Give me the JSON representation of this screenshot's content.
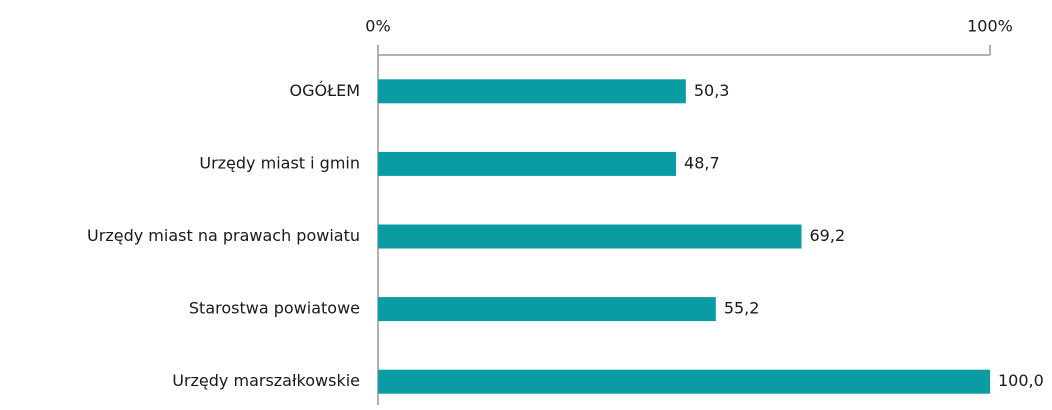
{
  "chart_data": {
    "type": "bar",
    "orientation": "horizontal",
    "categories": [
      "OGÓŁEM",
      "Urzędy miast i gmin",
      "Urzędy miast na prawach powiatu",
      "Starostwa powiatowe",
      "Urzędy marszałkowskie"
    ],
    "values": [
      50.3,
      48.7,
      69.2,
      55.2,
      100.0
    ],
    "value_labels": [
      "50,3",
      "48,7",
      "69,2",
      "55,2",
      "100,0"
    ],
    "color": "#0a9ba3",
    "xlim": [
      0,
      100
    ],
    "xticks": [
      {
        "value": 0,
        "label": "0%"
      },
      {
        "value": 100,
        "label": "100%"
      }
    ]
  }
}
